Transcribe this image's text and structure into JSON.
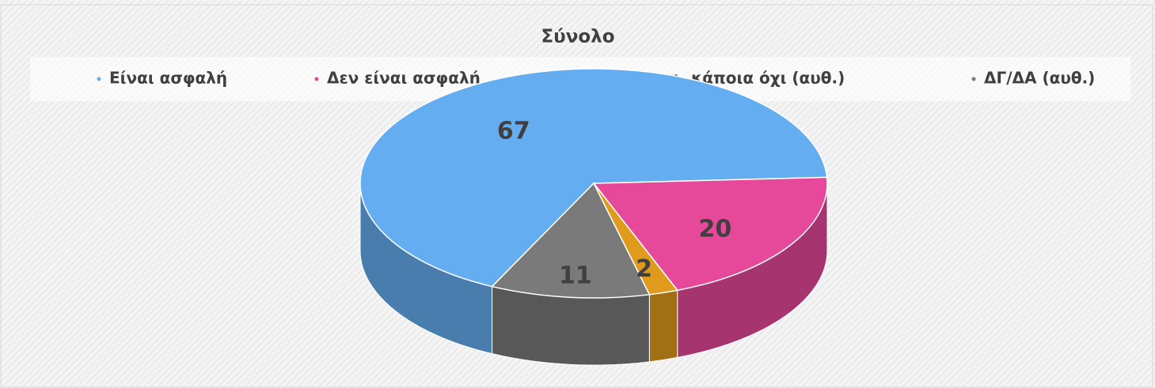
{
  "chart_data": {
    "type": "pie",
    "title": "Σύνολο",
    "categories": [
      "Είναι ασφαλή",
      "Δεν είναι ασφαλή",
      "Κάποια ναι, κάποια όχι (αυθ.)",
      "ΔΓ/ΔΑ (αυθ.)"
    ],
    "values": [
      67,
      20,
      2,
      11
    ],
    "colors": [
      "#64adf0",
      "#e6489a",
      "#e09a1c",
      "#7a7a7a"
    ],
    "legend": "top"
  }
}
